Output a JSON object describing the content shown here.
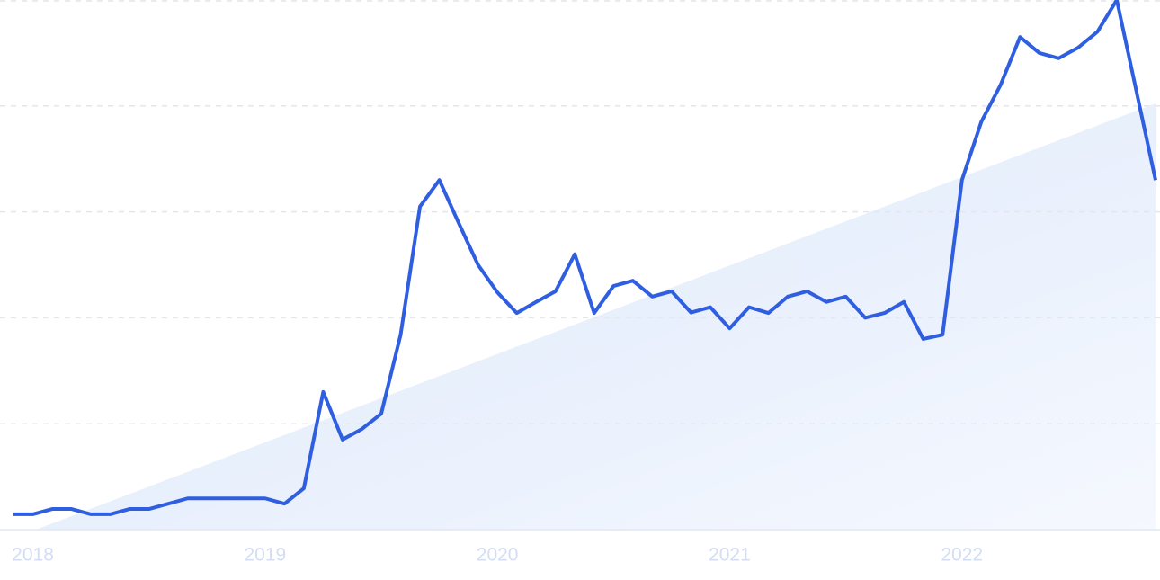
{
  "chart_data": {
    "type": "line",
    "categories": [
      null,
      "2018",
      null,
      null,
      null,
      null,
      null,
      null,
      null,
      null,
      null,
      null,
      null,
      "2019",
      null,
      null,
      null,
      null,
      null,
      null,
      null,
      null,
      null,
      null,
      null,
      "2020",
      null,
      null,
      null,
      null,
      null,
      null,
      null,
      null,
      null,
      null,
      null,
      "2021",
      null,
      null,
      null,
      null,
      null,
      null,
      null,
      null,
      null,
      null,
      null,
      "2022",
      null,
      null,
      null,
      null,
      null,
      null,
      null,
      null,
      null,
      null
    ],
    "series": [
      {
        "color": "#2f5fe0",
        "values": [
          2.9,
          2.9,
          3.9,
          3.9,
          2.9,
          2.9,
          3.9,
          3.9,
          4.9,
          5.9,
          5.9,
          5.9,
          5.9,
          5.9,
          4.9,
          7.8,
          26,
          17,
          19,
          21.9,
          36.8,
          61,
          66,
          57.9,
          50,
          44.8,
          40.9,
          43,
          45,
          52,
          40.9,
          46,
          47,
          44,
          45,
          41,
          42,
          38,
          42,
          40.9,
          44,
          45,
          43,
          44,
          40,
          40.9,
          43,
          36,
          36.8,
          66,
          77,
          84,
          93,
          90,
          89,
          91,
          94,
          100,
          83,
          66
        ]
      }
    ],
    "ylim": [
      0,
      100
    ],
    "yticks": [
      0,
      20,
      40,
      60,
      80,
      100
    ],
    "grid": true
  }
}
